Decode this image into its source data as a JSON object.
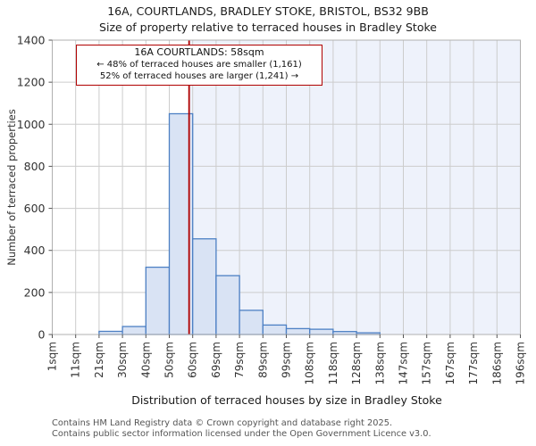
{
  "chart_data": {
    "type": "bar",
    "title": "16A, COURTLANDS, BRADLEY STOKE, BRISTOL, BS32 9BB",
    "subtitle": "Size of property relative to terraced houses in Bradley Stoke",
    "xlabel": "Distribution of terraced houses by size in Bradley Stoke",
    "ylabel": "Number of terraced properties",
    "bin_edges_sqm": [
      1,
      11,
      21,
      30,
      40,
      50,
      60,
      69,
      79,
      89,
      99,
      108,
      118,
      128,
      138,
      147,
      157,
      167,
      177,
      186,
      196
    ],
    "categories": [
      "1sqm",
      "11sqm",
      "21sqm",
      "30sqm",
      "40sqm",
      "50sqm",
      "60sqm",
      "69sqm",
      "79sqm",
      "89sqm",
      "99sqm",
      "108sqm",
      "118sqm",
      "128sqm",
      "138sqm",
      "147sqm",
      "157sqm",
      "167sqm",
      "177sqm",
      "186sqm",
      "196sqm"
    ],
    "values": [
      0,
      0,
      15,
      38,
      320,
      1050,
      455,
      280,
      115,
      45,
      28,
      25,
      14,
      8,
      0,
      0,
      0,
      0,
      0,
      0
    ],
    "ylim": [
      0,
      1400
    ],
    "yticks": [
      0,
      200,
      400,
      600,
      800,
      1000,
      1200,
      1400
    ],
    "grid": true,
    "legend": false,
    "marker": {
      "sqm": 58
    },
    "colors": {
      "bar_fill": "#d9e3f4",
      "bar_edge": "#4d80c4",
      "marker_line": "#b00000",
      "shade_right_of_marker": "#eef2fb",
      "gridline": "#cccccc",
      "frame": "#b0b0b0",
      "tick_text": "#333333"
    }
  },
  "annotation": {
    "line1": "16A COURTLANDS: 58sqm",
    "line2": "← 48% of terraced houses are smaller (1,161)",
    "line3": "52% of terraced houses are larger (1,241) →"
  },
  "footer": {
    "line1": "Contains HM Land Registry data © Crown copyright and database right 2025.",
    "line2": "Contains public sector information licensed under the Open Government Licence v3.0."
  }
}
